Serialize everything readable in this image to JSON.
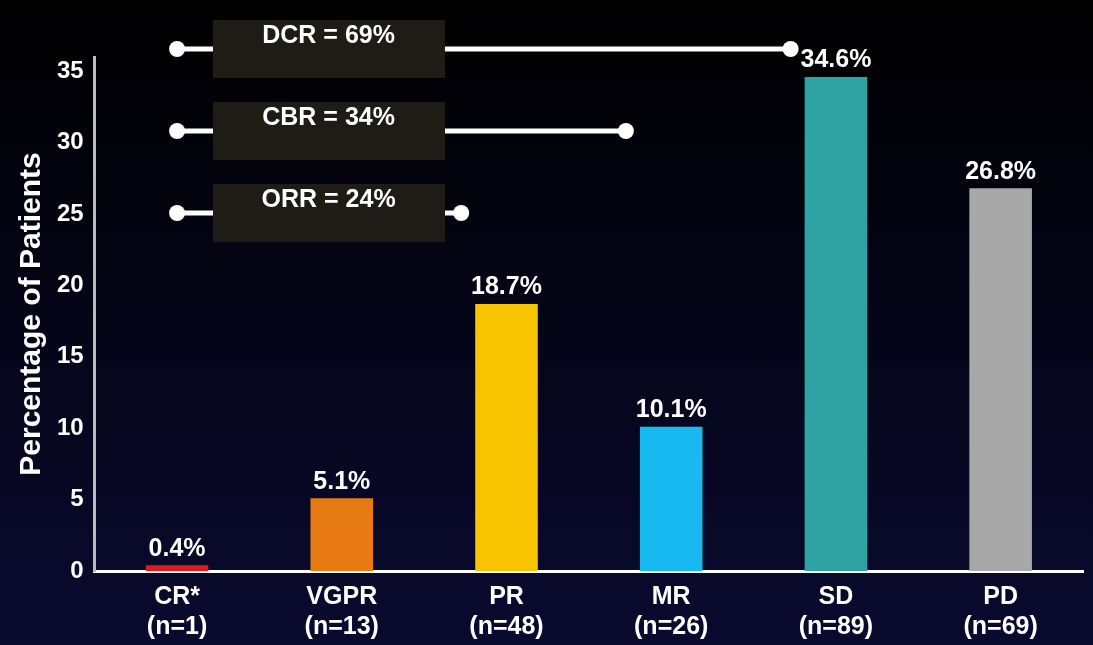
{
  "chart_data": {
    "type": "bar",
    "ylabel": "Percentage of Patients",
    "categories": [
      "CR*\n(n=1)",
      "VGPR\n(n=13)",
      "PR\n(n=48)",
      "MR\n(n=26)",
      "SD\n(n=89)",
      "PD\n(n=69)"
    ],
    "values": [
      0.4,
      5.1,
      18.7,
      10.1,
      34.6,
      26.8
    ],
    "colors": [
      "#e01818",
      "#e87a14",
      "#f8c400",
      "#18b8f0",
      "#2fa3a3",
      "#a8a8a8"
    ],
    "value_labels": [
      "0.4%",
      "5.1%",
      "18.7%",
      "10.1%",
      "34.6%",
      "26.8%"
    ],
    "ylim": [
      0,
      36
    ],
    "yticks": [
      0,
      5,
      10,
      15,
      20,
      25,
      30,
      35
    ],
    "grid": false,
    "legend": false,
    "annotations": [
      "DCR = 69%",
      "CBR = 34%",
      "ORR = 24%"
    ]
  }
}
